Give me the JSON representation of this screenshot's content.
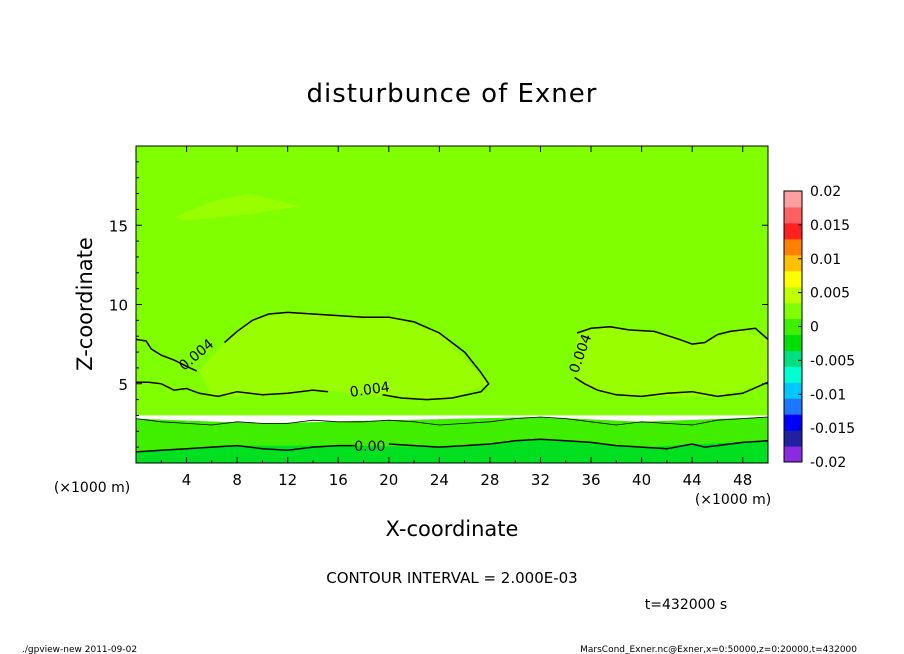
{
  "chart_data": {
    "type": "heatmap",
    "title": "disturbunce of Exner",
    "xlabel": "X-coordinate",
    "ylabel": "Z-coordinate",
    "x_unit": "(×1000 m)",
    "y_unit": "(×1000 m)",
    "xlim": [
      0,
      50
    ],
    "ylim": [
      0,
      20
    ],
    "x_ticks": [
      4,
      8,
      12,
      16,
      20,
      24,
      28,
      32,
      36,
      40,
      44,
      48
    ],
    "y_ticks": [
      5,
      10,
      15
    ],
    "colorbar": {
      "min": -0.02,
      "max": 0.02,
      "tick_labels": [
        "0.02",
        "0.015",
        "0.01",
        "0.005",
        "0",
        "-0.005",
        "-0.01",
        "-0.015",
        "-0.02"
      ],
      "tick_values": [
        0.02,
        0.015,
        0.01,
        0.005,
        0,
        -0.005,
        -0.01,
        -0.015,
        -0.02
      ],
      "colors": [
        "#8a2be2",
        "#2020a0",
        "#0000ff",
        "#1e78ff",
        "#00c8ff",
        "#00ffd0",
        "#00e080",
        "#00e000",
        "#40ee00",
        "#80ff00",
        "#c0ff00",
        "#ffff00",
        "#ffc000",
        "#ff8000",
        "#ff2020",
        "#ff6060",
        "#ffa0a0"
      ]
    },
    "contour_labels": [
      {
        "text": "0.004",
        "x": 4.8,
        "z": 6.8,
        "angle": -40
      },
      {
        "text": "0.004",
        "x": 18.5,
        "z": 4.6,
        "angle": -8
      },
      {
        "text": "0.004",
        "x": 35.2,
        "z": 6.9,
        "angle": -70
      },
      {
        "text": "0.00",
        "x": 18.5,
        "z": 1.0,
        "angle": 0
      }
    ],
    "contours": [
      {
        "level": 0.004,
        "points": [
          [
            0,
            7.8
          ],
          [
            0.8,
            7.7
          ],
          [
            1.2,
            7.2
          ],
          [
            2,
            6.8
          ],
          [
            3,
            6.5
          ],
          [
            4,
            6.1
          ],
          [
            4.8,
            5.8
          ]
        ]
      },
      {
        "level": 0.004,
        "points": [
          [
            7,
            7.6
          ],
          [
            8,
            8.3
          ],
          [
            9.2,
            9.0
          ],
          [
            10.5,
            9.4
          ],
          [
            12,
            9.5
          ],
          [
            14,
            9.4
          ],
          [
            16,
            9.3
          ],
          [
            18,
            9.2
          ],
          [
            20,
            9.2
          ],
          [
            22,
            8.9
          ],
          [
            24,
            8.2
          ],
          [
            26,
            7.0
          ],
          [
            27.2,
            5.8
          ],
          [
            27.9,
            5.0
          ],
          [
            27.3,
            4.5
          ],
          [
            25,
            4.1
          ],
          [
            23,
            4.0
          ],
          [
            21,
            4.1
          ],
          [
            19.5,
            4.3
          ]
        ]
      },
      {
        "level": 0.004,
        "points": [
          [
            15.2,
            4.5
          ],
          [
            14,
            4.6
          ],
          [
            12,
            4.4
          ],
          [
            10,
            4.3
          ],
          [
            8,
            4.5
          ],
          [
            6.5,
            4.2
          ],
          [
            5,
            4.4
          ],
          [
            4,
            4.7
          ],
          [
            3,
            4.6
          ],
          [
            2,
            5.0
          ],
          [
            1,
            5.1
          ],
          [
            0,
            5.1
          ]
        ]
      },
      {
        "level": 0.004,
        "points": [
          [
            34.7,
            5.4
          ],
          [
            35.5,
            5.0
          ],
          [
            36.5,
            4.6
          ],
          [
            38,
            4.3
          ],
          [
            40,
            4.2
          ],
          [
            42,
            4.4
          ],
          [
            44,
            4.5
          ],
          [
            46,
            4.2
          ],
          [
            48,
            4.4
          ],
          [
            50,
            5.1
          ]
        ]
      },
      {
        "level": 0.004,
        "points": [
          [
            34.9,
            8.2
          ],
          [
            36,
            8.5
          ],
          [
            37.5,
            8.6
          ],
          [
            39,
            8.4
          ],
          [
            41,
            8.3
          ],
          [
            43,
            7.8
          ],
          [
            44,
            7.5
          ],
          [
            45,
            7.6
          ],
          [
            46,
            8.1
          ],
          [
            47,
            8.3
          ],
          [
            48,
            8.4
          ],
          [
            49,
            8.5
          ],
          [
            50,
            7.8
          ]
        ]
      },
      {
        "level": 0.002,
        "points": [
          [
            0,
            2.8
          ],
          [
            2,
            2.6
          ],
          [
            4,
            2.5
          ],
          [
            6,
            2.4
          ],
          [
            8,
            2.6
          ],
          [
            10,
            2.5
          ],
          [
            12,
            2.5
          ],
          [
            14,
            2.7
          ],
          [
            16,
            2.6
          ],
          [
            18,
            2.6
          ],
          [
            20,
            2.7
          ],
          [
            22,
            2.6
          ],
          [
            24,
            2.4
          ],
          [
            26,
            2.5
          ],
          [
            28,
            2.6
          ],
          [
            30,
            2.8
          ],
          [
            32,
            2.9
          ],
          [
            34,
            2.8
          ],
          [
            36,
            2.6
          ],
          [
            38,
            2.4
          ],
          [
            40,
            2.6
          ],
          [
            42,
            2.5
          ],
          [
            44,
            2.4
          ],
          [
            46,
            2.7
          ],
          [
            48,
            2.8
          ],
          [
            50,
            2.9
          ]
        ]
      },
      {
        "level": 0.0,
        "points": [
          [
            0,
            0.7
          ],
          [
            2,
            0.8
          ],
          [
            4,
            0.9
          ],
          [
            6,
            1.0
          ],
          [
            8,
            1.1
          ],
          [
            10,
            0.9
          ],
          [
            12,
            0.8
          ],
          [
            14,
            1.0
          ],
          [
            16,
            1.1
          ],
          [
            17.3,
            1.1
          ]
        ]
      },
      {
        "level": 0.0,
        "points": [
          [
            20,
            1.2
          ],
          [
            22,
            1.1
          ],
          [
            24,
            1.0
          ],
          [
            26,
            1.1
          ],
          [
            28,
            1.2
          ],
          [
            30,
            1.4
          ],
          [
            32,
            1.5
          ],
          [
            34,
            1.4
          ],
          [
            36,
            1.3
          ],
          [
            38,
            1.1
          ],
          [
            40,
            1.0
          ],
          [
            42,
            0.9
          ],
          [
            44,
            1.2
          ],
          [
            45,
            1.0
          ],
          [
            46,
            1.1
          ],
          [
            48,
            1.3
          ],
          [
            50,
            1.4
          ]
        ]
      }
    ],
    "regions": [
      {
        "level_band": "0.002–0.004",
        "color": "#80ff00",
        "points": [
          [
            0,
            20
          ],
          [
            50,
            20
          ],
          [
            50,
            3
          ],
          [
            0,
            3
          ]
        ]
      },
      {
        "level_band": "0.004–0.006",
        "color": "#99ff00",
        "points": [
          [
            5,
            5.8
          ],
          [
            7,
            7.6
          ],
          [
            9.2,
            9.0
          ],
          [
            12,
            9.5
          ],
          [
            16,
            9.3
          ],
          [
            20,
            9.2
          ],
          [
            24,
            8.2
          ],
          [
            27.9,
            5.0
          ],
          [
            25,
            4.1
          ],
          [
            21,
            4.1
          ],
          [
            15,
            4.6
          ],
          [
            10,
            4.3
          ],
          [
            6,
            4.2
          ],
          [
            5,
            5.8
          ]
        ]
      },
      {
        "level_band": "0.004–0.006",
        "color": "#99ff00",
        "points": [
          [
            34.7,
            5.4
          ],
          [
            36.5,
            4.6
          ],
          [
            40,
            4.2
          ],
          [
            46,
            4.2
          ],
          [
            50,
            5.1
          ],
          [
            50,
            7.8
          ],
          [
            48,
            8.4
          ],
          [
            44,
            7.5
          ],
          [
            41,
            8.3
          ],
          [
            37.5,
            8.6
          ],
          [
            34.9,
            8.2
          ]
        ]
      },
      {
        "level_band": "0.004–0.006",
        "color": "#99ff00",
        "points": [
          [
            3,
            15.5
          ],
          [
            6,
            16.5
          ],
          [
            9,
            17.0
          ],
          [
            13,
            16.2
          ],
          [
            9,
            15.7
          ],
          [
            4,
            15.3
          ]
        ]
      },
      {
        "level_band": "0.0–0.002",
        "color": "#40ee00",
        "points": [
          [
            0,
            2.8
          ],
          [
            10,
            2.5
          ],
          [
            20,
            2.7
          ],
          [
            32,
            2.9
          ],
          [
            40,
            2.6
          ],
          [
            50,
            2.9
          ],
          [
            50,
            0
          ],
          [
            0,
            0
          ]
        ]
      },
      {
        "level_band": "-0.002–0.0",
        "color": "#00e020",
        "points": [
          [
            0,
            0.7
          ],
          [
            8,
            1.1
          ],
          [
            17,
            1.1
          ],
          [
            24,
            1.0
          ],
          [
            32,
            1.5
          ],
          [
            40,
            1.0
          ],
          [
            50,
            1.4
          ],
          [
            50,
            0
          ],
          [
            0,
            0
          ]
        ]
      }
    ]
  },
  "annotation": {
    "contour_interval": "CONTOUR INTERVAL = 2.000E-03",
    "time": "t=432000 s"
  },
  "footer": {
    "left": "./gpview-new  2011-09-02",
    "right": "MarsCond_Exner.nc@Exner,x=0:50000,z=0:20000,t=432000"
  }
}
